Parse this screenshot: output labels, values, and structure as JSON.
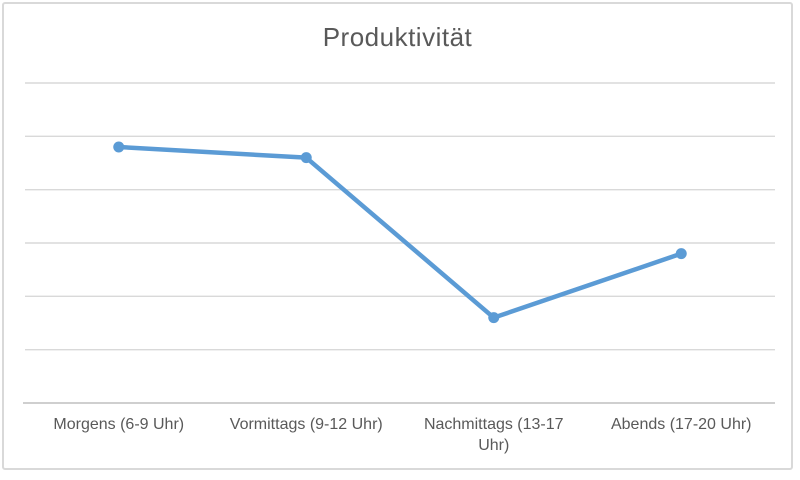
{
  "chart_data": {
    "type": "line",
    "title": "Produktivität",
    "categories": [
      "Morgens (6-9 Uhr)",
      "Vormittags (9-12 Uhr)",
      "Nachmittags (13-17 Uhr)",
      "Abends (17-20 Uhr)"
    ],
    "series": [
      {
        "name": "Produktivität",
        "values": [
          4.8,
          4.6,
          1.6,
          2.8
        ]
      }
    ],
    "xlabel": "",
    "ylabel": "",
    "ylim": [
      0,
      6
    ],
    "y_major_unit": 1,
    "grid": true,
    "y_axis_labels_visible": false,
    "legend": "none",
    "marker": "circle",
    "colors": {
      "series": "#5B9BD5",
      "gridline": "#D9D9D9",
      "axis": "#BFBFBF",
      "text": "#595959",
      "frame_border": "#D9D9D9",
      "background": "#FFFFFF"
    }
  }
}
